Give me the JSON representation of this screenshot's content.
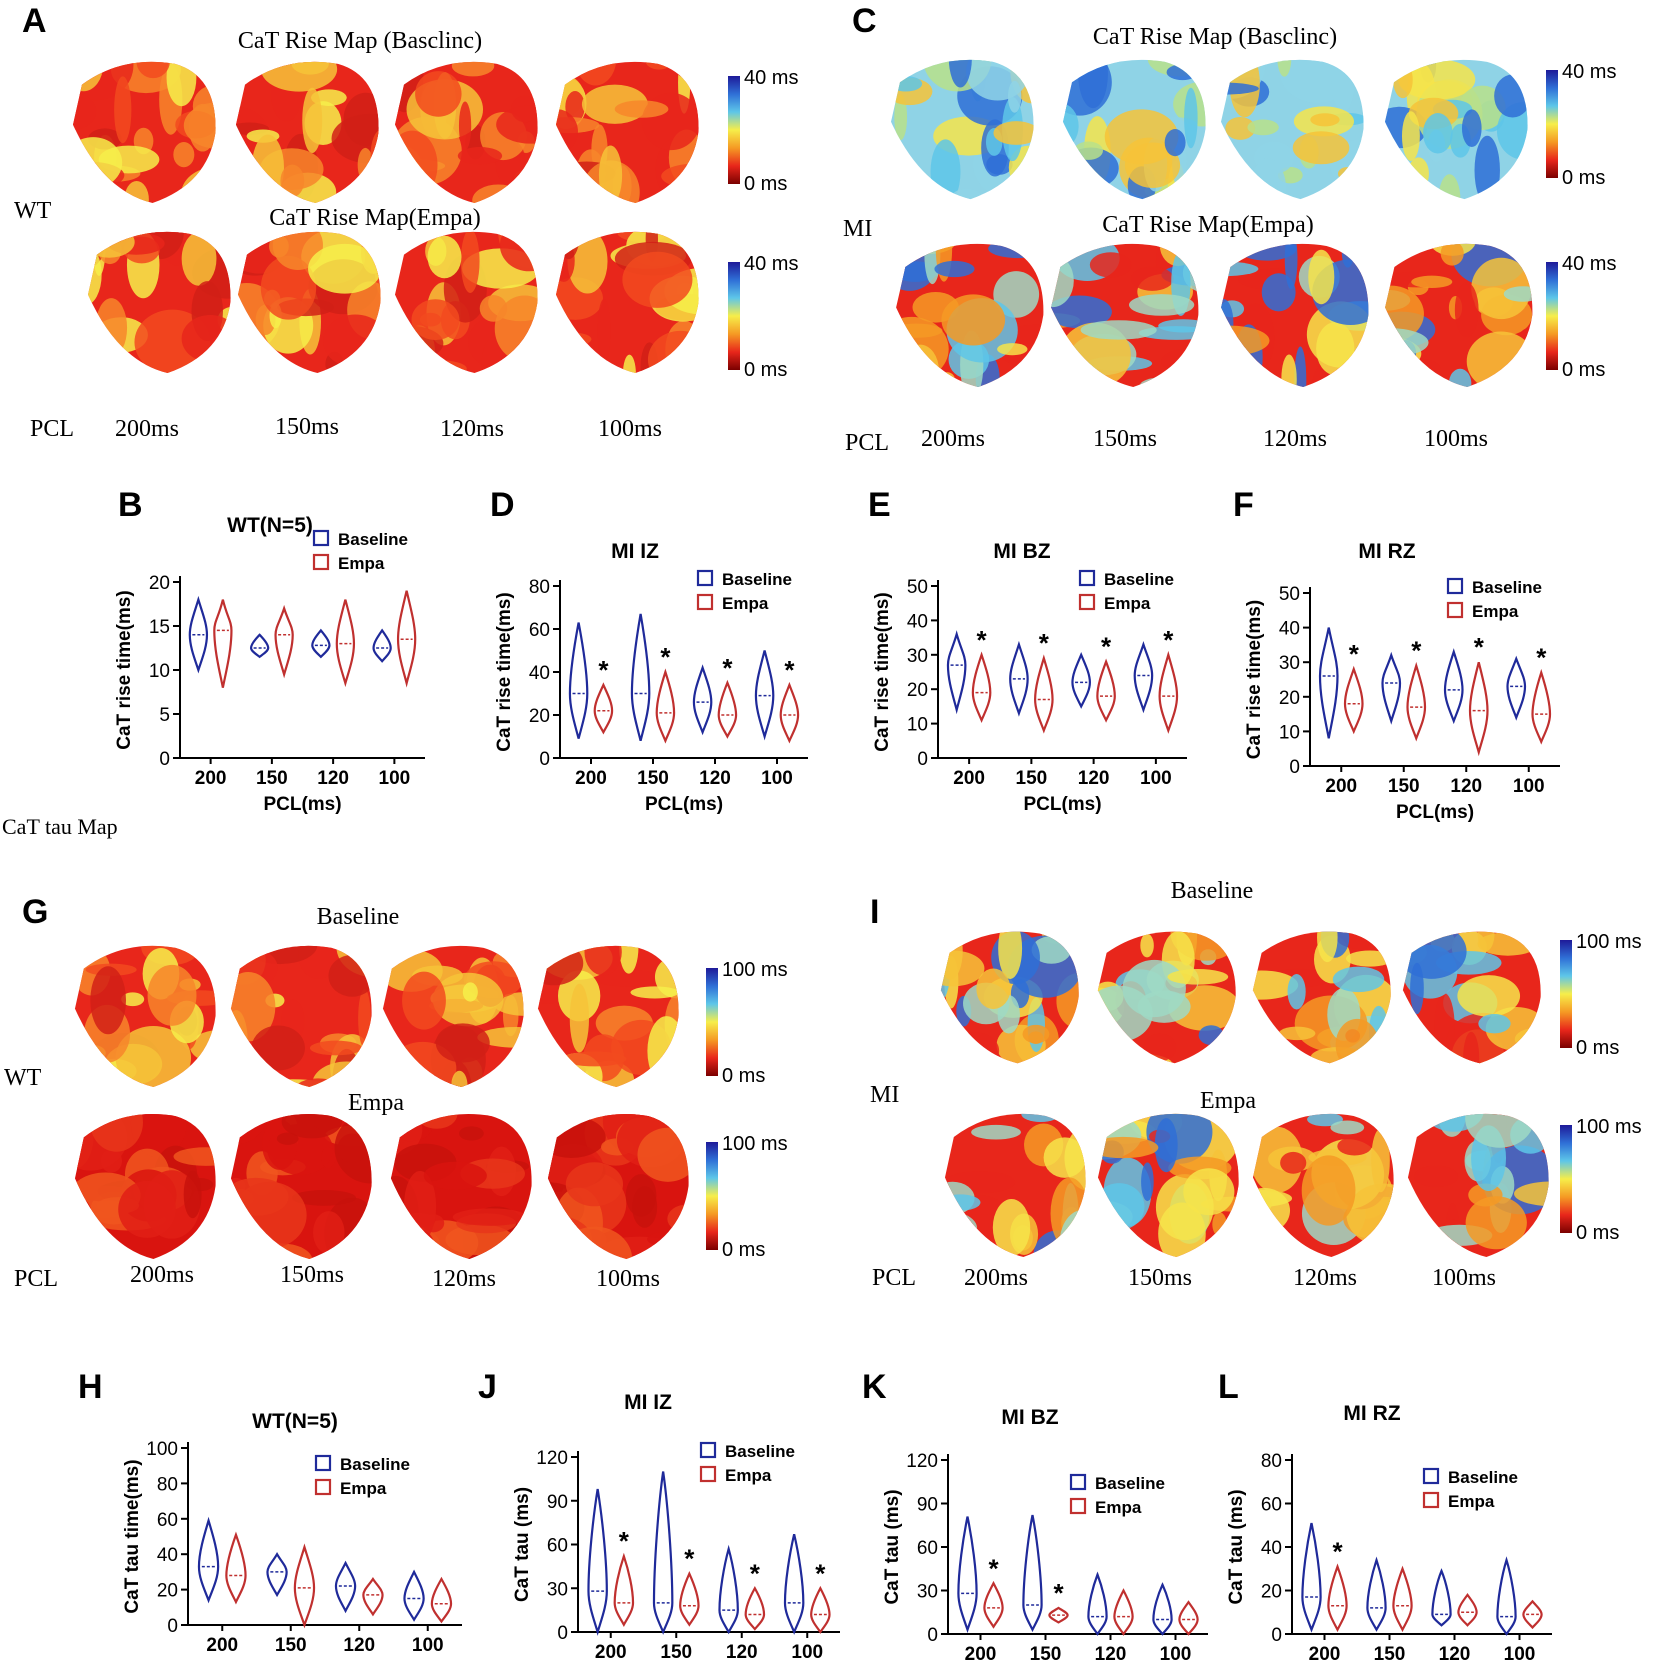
{
  "colors": {
    "baseline": "#1f2a9a",
    "empa": "#c0302f",
    "axis": "#000000"
  },
  "colorbar_stops": [
    "#1e1a99",
    "#2f6fd6",
    "#5ec6e8",
    "#f6ee4a",
    "#f59a24",
    "#e8261b",
    "#7a0000"
  ],
  "legend": {
    "baseline": "Baseline",
    "empa": "Empa"
  },
  "panel_letters": [
    "A",
    "B",
    "C",
    "D",
    "E",
    "F",
    "G",
    "H",
    "I",
    "J",
    "K",
    "L"
  ],
  "maps": {
    "A": {
      "top_title": "CaT Rise Map (Basclinc)",
      "bottom_title": "CaT Rise Map(Empa)",
      "row_label": "WT",
      "cb_top": "40 ms",
      "cb_bottom": "0 ms",
      "pcl_label": "PCL",
      "pcls": [
        "200ms",
        "150ms",
        "120ms",
        "100ms"
      ],
      "palette_base": "warm",
      "palette_empa": "warm"
    },
    "C": {
      "top_title": "CaT Rise Map (Basclinc)",
      "bottom_title": "CaT Rise Map(Empa)",
      "row_label": "MI",
      "cb_top": "40 ms",
      "cb_bottom": "0 ms",
      "pcl_label": "PCL",
      "pcls": [
        "200ms",
        "150ms",
        "120ms",
        "100ms"
      ],
      "palette_base": "cool",
      "palette_empa": "mixed"
    },
    "G": {
      "top_title": "Baseline",
      "bottom_title": "Empa",
      "row_label": "WT",
      "cb_top": "100 ms",
      "cb_bottom": "0 ms",
      "pcl_label": "PCL",
      "pcls": [
        "200ms",
        "150ms",
        "120ms",
        "100ms"
      ],
      "palette_base": "warm",
      "palette_empa": "hot"
    },
    "I": {
      "top_title": "Baseline",
      "bottom_title": "Empa",
      "row_label": "MI",
      "cb_top": "100 ms",
      "cb_bottom": "0 ms",
      "pcl_label": "PCL",
      "pcls": [
        "200ms",
        "150ms",
        "120ms",
        "100ms"
      ],
      "palette_base": "mixed",
      "palette_empa": "mixed"
    }
  },
  "section_label": "CaT tau Map",
  "chart_data": [
    {
      "panel": "B",
      "type": "violin",
      "title": "WT(N=5)",
      "ylabel": "CaT rise time(ms)",
      "xlabel": "PCL(ms)",
      "categories": [
        "200",
        "150",
        "120",
        "100"
      ],
      "ylim": [
        0,
        20
      ],
      "yticks": [
        0,
        5,
        10,
        15,
        20
      ],
      "series": [
        {
          "name": "Baseline",
          "ranges": [
            [
              10,
              18
            ],
            [
              11.5,
              14
            ],
            [
              11.5,
              14.5
            ],
            [
              11,
              14.5
            ]
          ],
          "medians": [
            14,
            12.5,
            12.8,
            12.5
          ]
        },
        {
          "name": "Empa",
          "ranges": [
            [
              8,
              18
            ],
            [
              9.5,
              17
            ],
            [
              8.5,
              18
            ],
            [
              8.5,
              19
            ]
          ],
          "medians": [
            14.5,
            14,
            13,
            13.5
          ]
        }
      ],
      "significant": [
        false,
        false,
        false,
        false
      ]
    },
    {
      "panel": "D",
      "type": "violin",
      "title": "MI IZ",
      "ylabel": "CaT rise time(ms)",
      "xlabel": "PCL(ms)",
      "categories": [
        "200",
        "150",
        "120",
        "100"
      ],
      "ylim": [
        0,
        80
      ],
      "yticks": [
        0,
        20,
        40,
        60,
        80
      ],
      "series": [
        {
          "name": "Baseline",
          "ranges": [
            [
              9,
              63
            ],
            [
              8,
              67
            ],
            [
              12,
              42
            ],
            [
              10,
              50
            ]
          ],
          "medians": [
            30,
            30,
            26,
            29
          ]
        },
        {
          "name": "Empa",
          "ranges": [
            [
              12,
              34
            ],
            [
              8,
              40
            ],
            [
              10,
              35
            ],
            [
              8,
              34
            ]
          ],
          "medians": [
            22,
            21,
            20,
            20
          ]
        }
      ],
      "significant": [
        true,
        true,
        true,
        true
      ]
    },
    {
      "panel": "E",
      "type": "violin",
      "title": "MI BZ",
      "ylabel": "CaT rise time(ms)",
      "xlabel": "PCL(ms)",
      "categories": [
        "200",
        "150",
        "120",
        "100"
      ],
      "ylim": [
        0,
        50
      ],
      "yticks": [
        0,
        10,
        20,
        30,
        40,
        50
      ],
      "series": [
        {
          "name": "Baseline",
          "ranges": [
            [
              14,
              36
            ],
            [
              13,
              33
            ],
            [
              15,
              30
            ],
            [
              14,
              33
            ]
          ],
          "medians": [
            27,
            23,
            22,
            24
          ]
        },
        {
          "name": "Empa",
          "ranges": [
            [
              11,
              30
            ],
            [
              8,
              29
            ],
            [
              11,
              28
            ],
            [
              8,
              30
            ]
          ],
          "medians": [
            19,
            17,
            18,
            18
          ]
        }
      ],
      "significant": [
        true,
        true,
        true,
        true
      ]
    },
    {
      "panel": "F",
      "type": "violin",
      "title": "MI RZ",
      "ylabel": "CaT rise time(ms)",
      "xlabel": "PCL(ms)",
      "categories": [
        "200",
        "150",
        "120",
        "100"
      ],
      "ylim": [
        0,
        50
      ],
      "yticks": [
        0,
        10,
        20,
        30,
        40,
        50
      ],
      "series": [
        {
          "name": "Baseline",
          "ranges": [
            [
              8,
              40
            ],
            [
              13,
              32
            ],
            [
              13,
              33
            ],
            [
              14,
              31
            ]
          ],
          "medians": [
            26,
            24,
            22,
            23
          ]
        },
        {
          "name": "Empa",
          "ranges": [
            [
              10,
              28
            ],
            [
              8,
              29
            ],
            [
              4,
              30
            ],
            [
              7,
              27
            ]
          ],
          "medians": [
            18,
            17,
            16,
            15
          ]
        }
      ],
      "significant": [
        true,
        true,
        true,
        true
      ]
    },
    {
      "panel": "H",
      "type": "violin",
      "title": "WT(N=5)",
      "ylabel": "CaT tau time(ms)",
      "xlabel": "",
      "categories": [
        "200",
        "150",
        "120",
        "100"
      ],
      "ylim": [
        0,
        100
      ],
      "yticks": [
        0,
        20,
        40,
        60,
        80,
        100
      ],
      "series": [
        {
          "name": "Baseline",
          "ranges": [
            [
              14,
              59
            ],
            [
              17,
              40
            ],
            [
              8,
              35
            ],
            [
              3,
              30
            ]
          ],
          "medians": [
            33,
            30,
            22,
            15
          ]
        },
        {
          "name": "Empa",
          "ranges": [
            [
              13,
              51
            ],
            [
              0,
              44
            ],
            [
              6,
              26
            ],
            [
              2,
              26
            ]
          ],
          "medians": [
            28,
            21,
            17,
            12
          ]
        }
      ],
      "significant": [
        false,
        false,
        false,
        false
      ]
    },
    {
      "panel": "J",
      "type": "violin",
      "title": "MI IZ",
      "ylabel": "CaT tau (ms)",
      "xlabel": "",
      "categories": [
        "200",
        "150",
        "120",
        "100"
      ],
      "ylim": [
        0,
        120
      ],
      "yticks": [
        0,
        30,
        60,
        90,
        120
      ],
      "series": [
        {
          "name": "Baseline",
          "ranges": [
            [
              0,
              98
            ],
            [
              0,
              110
            ],
            [
              0,
              57
            ],
            [
              0,
              67
            ]
          ],
          "medians": [
            28,
            20,
            15,
            20
          ]
        },
        {
          "name": "Empa",
          "ranges": [
            [
              5,
              52
            ],
            [
              5,
              40
            ],
            [
              2,
              30
            ],
            [
              0,
              30
            ]
          ],
          "medians": [
            20,
            18,
            12,
            12
          ]
        }
      ],
      "significant": [
        true,
        true,
        true,
        true
      ]
    },
    {
      "panel": "K",
      "type": "violin",
      "title": "MI BZ",
      "ylabel": "CaT tau (ms)",
      "xlabel": "",
      "categories": [
        "200",
        "150",
        "120",
        "100"
      ],
      "ylim": [
        0,
        120
      ],
      "yticks": [
        0,
        30,
        60,
        90,
        120
      ],
      "series": [
        {
          "name": "Baseline",
          "ranges": [
            [
              3,
              81
            ],
            [
              3,
              82
            ],
            [
              0,
              41
            ],
            [
              0,
              34
            ]
          ],
          "medians": [
            28,
            20,
            12,
            10
          ]
        },
        {
          "name": "Empa",
          "ranges": [
            [
              5,
              35
            ],
            [
              8,
              18
            ],
            [
              0,
              30
            ],
            [
              0,
              22
            ]
          ],
          "medians": [
            18,
            13,
            12,
            10
          ]
        }
      ],
      "significant": [
        true,
        true,
        false,
        false
      ]
    },
    {
      "panel": "L",
      "type": "violin",
      "title": "MI RZ",
      "ylabel": "CaT tau (ms)",
      "xlabel": "",
      "categories": [
        "200",
        "150",
        "120",
        "100"
      ],
      "ylim": [
        0,
        80
      ],
      "yticks": [
        0,
        20,
        40,
        60,
        80
      ],
      "series": [
        {
          "name": "Baseline",
          "ranges": [
            [
              2,
              51
            ],
            [
              2,
              34
            ],
            [
              4,
              29
            ],
            [
              0,
              34
            ]
          ],
          "medians": [
            17,
            12,
            9,
            8
          ]
        },
        {
          "name": "Empa",
          "ranges": [
            [
              2,
              31
            ],
            [
              2,
              30
            ],
            [
              4,
              18
            ],
            [
              3,
              15
            ]
          ],
          "medians": [
            13,
            13,
            10,
            9
          ]
        }
      ],
      "significant": [
        true,
        false,
        false,
        false
      ]
    }
  ]
}
